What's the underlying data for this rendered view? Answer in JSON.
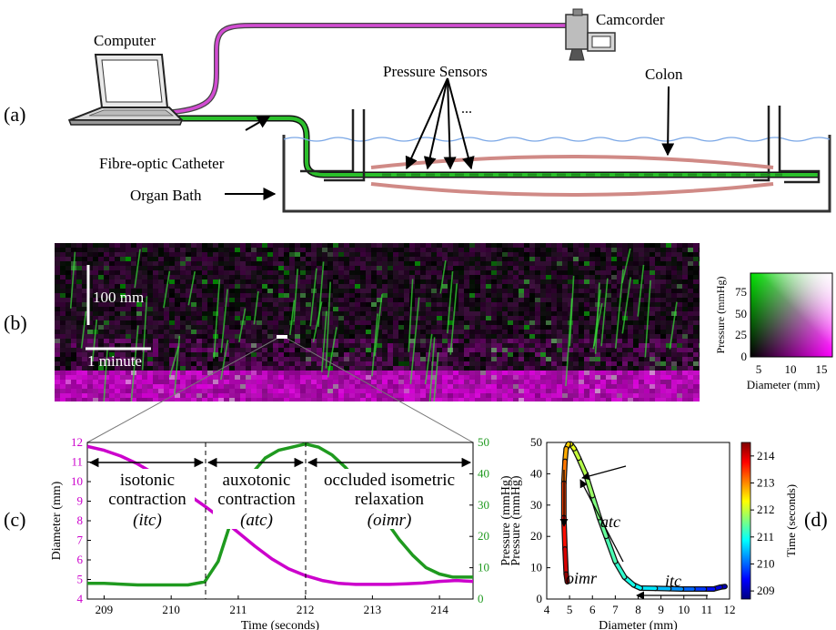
{
  "panel_a": {
    "label": "(a)",
    "computer": "Computer",
    "camcorder": "Camcorder",
    "pressure_sensors": "Pressure Sensors",
    "ellipsis": "...",
    "colon": "Colon",
    "catheter": "Fibre-optic Catheter",
    "organ_bath": "Organ Bath"
  },
  "panel_b": {
    "label": "(b)",
    "scale_vertical": "100 mm",
    "scale_horizontal": "1 minute",
    "legend_ylabel": "Pressure (mmHg)",
    "legend_xlabel": "Diameter (mm)",
    "legend_xticks": [
      "5",
      "10",
      "15"
    ],
    "legend_yticks": [
      "0",
      "25",
      "50",
      "75"
    ]
  },
  "panel_c": {
    "label": "(c)",
    "phase_itc_1": "isotonic",
    "phase_itc_2": "contraction",
    "phase_itc_3": "(itc)",
    "phase_atc_1": "auxotonic",
    "phase_atc_2": "contraction",
    "phase_atc_3": "(atc)",
    "phase_oimr_1": "occluded isometric",
    "phase_oimr_2": "relaxation",
    "phase_oimr_3": "(oimr)"
  },
  "panel_d": {
    "label": "(d)",
    "atc": "atc",
    "itc": "itc",
    "oimr": "oimr"
  },
  "chart_data": [
    {
      "type": "line",
      "xlabel": "Time (seconds)",
      "ylabel": "Diameter (mm)",
      "y2label": "Pressure (mmHg)",
      "xlim": [
        208.75,
        214.5
      ],
      "ylim": [
        4,
        12
      ],
      "y2lim": [
        0,
        50
      ],
      "xticks": [
        209,
        210,
        211,
        212,
        213,
        214
      ],
      "yticks": [
        4,
        5,
        6,
        7,
        8,
        9,
        10,
        11,
        12
      ],
      "y2ticks": [
        0,
        10,
        20,
        30,
        40,
        50
      ],
      "series": [
        {
          "axis": "left",
          "color": "#cc00cc",
          "x": [
            208.75,
            209.0,
            209.25,
            209.5,
            209.75,
            210.0,
            210.25,
            210.5,
            210.75,
            211.0,
            211.25,
            211.5,
            211.75,
            212.0,
            212.25,
            212.5,
            212.75,
            213.0,
            213.25,
            213.5,
            213.75,
            214.0,
            214.25,
            214.5
          ],
          "y": [
            11.8,
            11.6,
            11.3,
            10.9,
            10.4,
            9.9,
            9.35,
            8.75,
            8.1,
            7.4,
            6.7,
            6.05,
            5.55,
            5.2,
            4.95,
            4.8,
            4.75,
            4.75,
            4.75,
            4.78,
            4.82,
            4.9,
            4.95,
            4.9
          ]
        },
        {
          "axis": "right",
          "color": "#1f9a1f",
          "x": [
            208.75,
            209.0,
            209.5,
            210.0,
            210.25,
            210.5,
            210.7,
            210.85,
            211.0,
            211.2,
            211.4,
            211.6,
            211.8,
            212.0,
            212.2,
            212.4,
            212.6,
            212.8,
            213.0,
            213.2,
            213.4,
            213.6,
            213.8,
            214.0,
            214.2,
            214.5
          ],
          "y": [
            5,
            5,
            4.5,
            4.5,
            4.5,
            5.5,
            12,
            22,
            32,
            40,
            45,
            47.5,
            48.5,
            49.5,
            48.5,
            46,
            42,
            37,
            31,
            25,
            19,
            14,
            10,
            8,
            7,
            7
          ]
        }
      ]
    },
    {
      "type": "line",
      "xlabel": "Diameter (mm)",
      "ylabel": "Pressure (mmHg)",
      "colorbar_label": "Time (seconds)",
      "xlim": [
        4,
        12
      ],
      "ylim": [
        0,
        50
      ],
      "clim": [
        208.7,
        214.5
      ],
      "xticks": [
        4,
        5,
        6,
        7,
        8,
        9,
        10,
        11,
        12
      ],
      "yticks": [
        0,
        10,
        20,
        30,
        40,
        50
      ],
      "cticks": [
        209,
        210,
        211,
        212,
        213,
        214
      ],
      "series": [
        {
          "x": [
            11.8,
            11.6,
            11.3,
            10.9,
            10.4,
            9.9,
            9.35,
            8.75,
            8.1,
            7.8,
            7.4,
            7.0,
            6.6,
            6.3,
            6.0,
            5.7,
            5.4,
            5.2,
            5.05,
            4.95,
            4.85,
            4.8,
            4.75,
            4.75,
            4.8,
            4.85,
            4.9
          ],
          "y": [
            4,
            3.8,
            3.2,
            3.2,
            3.2,
            3.2,
            3.3,
            3.4,
            3.5,
            4.5,
            7,
            12,
            20,
            26,
            33,
            40,
            45,
            48,
            49.5,
            49.5,
            48,
            44,
            37,
            26,
            16,
            8,
            5.5
          ],
          "t": [
            208.75,
            209.0,
            209.25,
            209.5,
            209.75,
            210.0,
            210.25,
            210.5,
            210.75,
            210.85,
            211.0,
            211.15,
            211.3,
            211.45,
            211.6,
            211.75,
            211.9,
            212.0,
            212.2,
            212.4,
            212.6,
            212.8,
            213.1,
            213.4,
            213.7,
            214.0,
            214.4
          ]
        }
      ]
    }
  ]
}
